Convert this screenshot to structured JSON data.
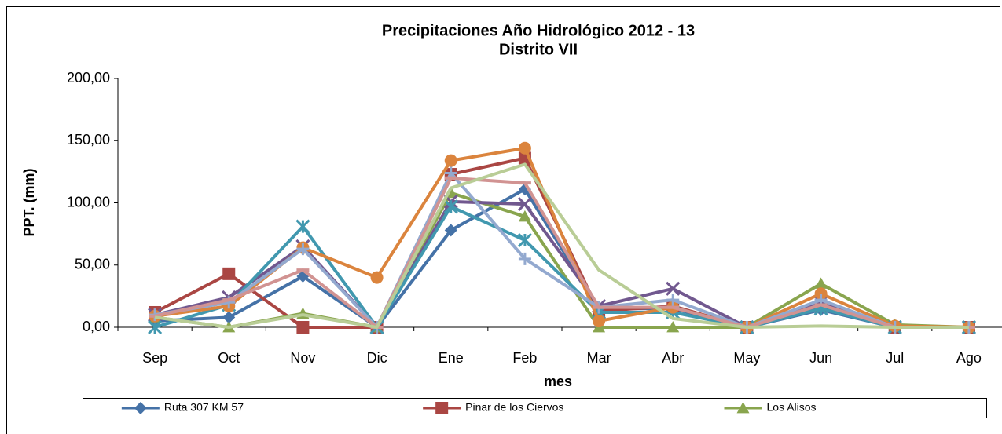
{
  "chart_data": {
    "type": "line",
    "title": "Precipitaciones Año Hidrológico 2012 - 13",
    "subtitle": "Distrito VII",
    "x_label": "mes",
    "y_label": "PPT. (mm)",
    "categories": [
      "Sep",
      "Oct",
      "Nov",
      "Dic",
      "Ene",
      "Feb",
      "Mar",
      "Abr",
      "May",
      "Jun",
      "Jul",
      "Ago"
    ],
    "ylim": [
      0,
      200
    ],
    "yticks": [
      {
        "value": 0,
        "label": "0,00"
      },
      {
        "value": 50,
        "label": "50,00"
      },
      {
        "value": 100,
        "label": "100,00"
      },
      {
        "value": 150,
        "label": "150,00"
      },
      {
        "value": 200,
        "label": "200,00"
      }
    ],
    "legend": "bottom",
    "series": [
      {
        "name": "Ruta 307 KM 57",
        "color": "#4572a7",
        "marker": "diamond",
        "values": [
          5,
          8,
          41,
          0,
          78,
          111,
          15,
          15,
          0,
          14,
          0,
          0
        ]
      },
      {
        "name": "Pinar de los Ciervos",
        "color": "#aa4643",
        "marker": "square",
        "values": [
          12,
          43,
          0,
          0,
          123,
          136,
          13,
          17,
          0,
          17,
          0,
          0
        ]
      },
      {
        "name": "Los Alisos",
        "color": "#89a54e",
        "marker": "triangle",
        "values": [
          8,
          0,
          11,
          0,
          108,
          89,
          0,
          0,
          0,
          35,
          2,
          0
        ]
      },
      {
        "color": "#71588f",
        "marker": "x",
        "values": [
          10,
          24,
          65,
          0,
          101,
          99,
          17,
          31,
          0,
          20,
          0,
          0
        ]
      },
      {
        "color": "#4198af",
        "marker": "star",
        "values": [
          0,
          18,
          81,
          0,
          97,
          70,
          12,
          12,
          0,
          15,
          0,
          0
        ]
      },
      {
        "color": "#db843d",
        "marker": "circle",
        "values": [
          9,
          17,
          64,
          40,
          134,
          144,
          5,
          16,
          0,
          27,
          1,
          0
        ]
      },
      {
        "color": "#93a9cf",
        "marker": "plus",
        "values": [
          10,
          20,
          63,
          0,
          124,
          55,
          16,
          22,
          0,
          22,
          0,
          0
        ]
      },
      {
        "color": "#d19392",
        "marker": "dash",
        "values": [
          9,
          22,
          46,
          0,
          120,
          116,
          16,
          16,
          0,
          18,
          0,
          0
        ]
      },
      {
        "color": "#b9cd96",
        "marker": "none",
        "values": [
          8,
          0,
          10,
          0,
          112,
          131,
          46,
          7,
          0,
          1,
          0,
          0
        ]
      }
    ]
  }
}
